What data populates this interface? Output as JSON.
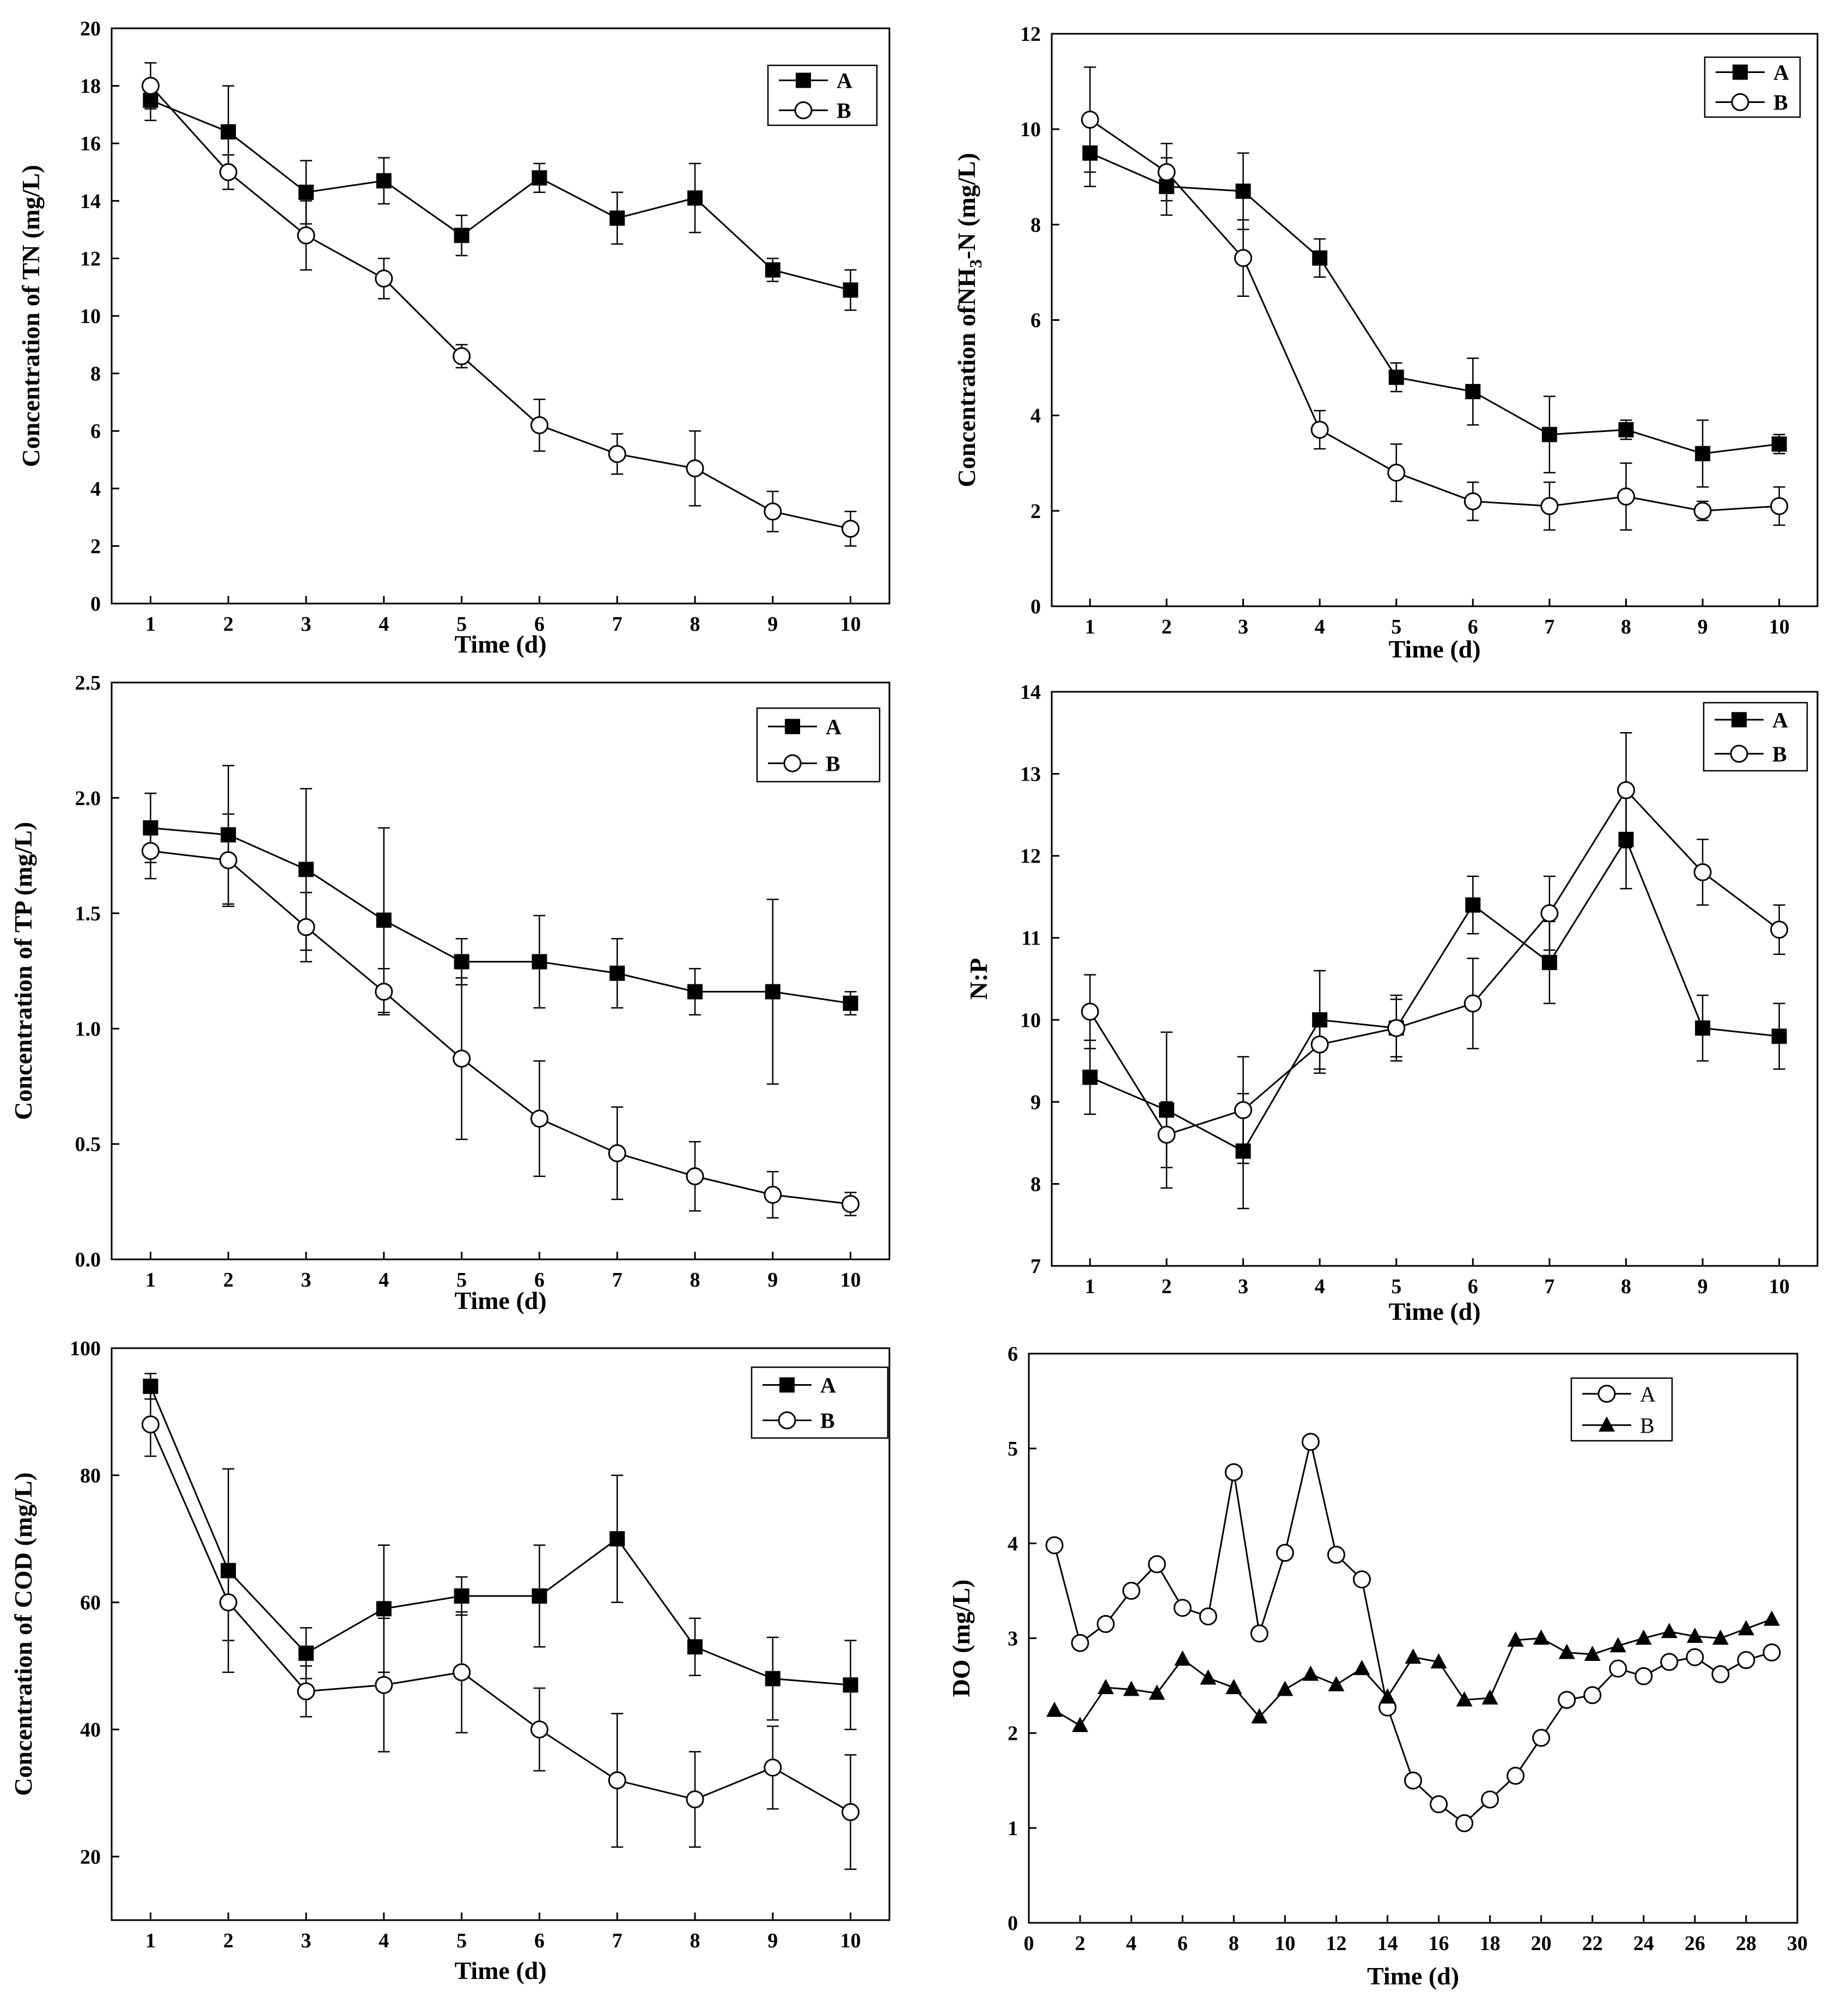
{
  "chart_data": [
    {
      "id": "tn",
      "type": "line",
      "title": "",
      "xlabel": "Time (d)",
      "ylabel": "Concentration of TN (mg/L)",
      "xlim": [
        0.5,
        10.5
      ],
      "ylim": [
        0,
        20
      ],
      "xticks": [
        1,
        2,
        3,
        4,
        5,
        6,
        7,
        8,
        9,
        10
      ],
      "yticks": [
        0,
        2,
        4,
        6,
        8,
        10,
        12,
        14,
        16,
        18,
        20
      ],
      "x": [
        1,
        2,
        3,
        4,
        5,
        6,
        7,
        8,
        9,
        10
      ],
      "grid": false,
      "legend_position": "top-right",
      "series": [
        {
          "name": "A",
          "marker": "filled-square",
          "values": [
            17.5,
            16.4,
            14.3,
            14.7,
            12.8,
            14.8,
            13.4,
            14.1,
            11.6,
            10.9
          ],
          "errors": [
            0.7,
            1.6,
            1.1,
            0.8,
            0.7,
            0.5,
            0.9,
            1.2,
            0.4,
            0.7
          ]
        },
        {
          "name": "B",
          "marker": "open-circle",
          "values": [
            18.0,
            15.0,
            12.8,
            11.3,
            8.6,
            6.2,
            5.2,
            4.7,
            3.2,
            2.6
          ],
          "errors": [
            0.8,
            0.6,
            1.2,
            0.7,
            0.4,
            0.9,
            0.7,
            1.3,
            0.7,
            0.6
          ]
        }
      ]
    },
    {
      "id": "nh3",
      "type": "line",
      "title": "",
      "xlabel": "Time (d)",
      "ylabel_main": "Concentration of",
      "ylabel_nh": "NH",
      "ylabel_sub": "3",
      "ylabel_tail": "-N (mg/L)",
      "xlim": [
        0.5,
        10.5
      ],
      "ylim": [
        0,
        12
      ],
      "xticks": [
        1,
        2,
        3,
        4,
        5,
        6,
        7,
        8,
        9,
        10
      ],
      "yticks": [
        0,
        2,
        4,
        6,
        8,
        10,
        12
      ],
      "x": [
        1,
        2,
        3,
        4,
        5,
        6,
        7,
        8,
        9,
        10
      ],
      "grid": false,
      "legend_position": "top-right",
      "series": [
        {
          "name": "A",
          "marker": "filled-square",
          "values": [
            9.5,
            8.8,
            8.7,
            7.3,
            4.8,
            4.5,
            3.6,
            3.7,
            3.2,
            3.4
          ],
          "errors": [
            0.7,
            0.6,
            0.8,
            0.4,
            0.3,
            0.7,
            0.8,
            0.2,
            0.7,
            0.2
          ]
        },
        {
          "name": "B",
          "marker": "open-circle",
          "values": [
            10.2,
            9.1,
            7.3,
            3.7,
            2.8,
            2.2,
            2.1,
            2.3,
            2.0,
            2.1
          ],
          "errors": [
            1.1,
            0.6,
            0.8,
            0.4,
            0.6,
            0.4,
            0.5,
            0.7,
            0.2,
            0.4
          ]
        }
      ]
    },
    {
      "id": "tp",
      "type": "line",
      "title": "",
      "xlabel": "Time (d)",
      "ylabel": "Concentration of TP (mg/L)",
      "xlim": [
        0.5,
        10.5
      ],
      "ylim": [
        0,
        2.5
      ],
      "xticks": [
        1,
        2,
        3,
        4,
        5,
        6,
        7,
        8,
        9,
        10
      ],
      "yticks": [
        "0.0",
        "0.5",
        "1.0",
        "1.5",
        "2.0",
        "2.5"
      ],
      "x": [
        1,
        2,
        3,
        4,
        5,
        6,
        7,
        8,
        9,
        10
      ],
      "grid": false,
      "legend_position": "top-right",
      "series": [
        {
          "name": "A",
          "marker": "filled-square",
          "values": [
            1.87,
            1.84,
            1.69,
            1.47,
            1.29,
            1.29,
            1.24,
            1.16,
            1.16,
            1.11
          ],
          "errors": [
            0.15,
            0.3,
            0.35,
            0.4,
            0.1,
            0.2,
            0.15,
            0.1,
            0.4,
            0.05
          ]
        },
        {
          "name": "B",
          "marker": "open-circle",
          "values": [
            1.77,
            1.73,
            1.44,
            1.16,
            0.87,
            0.61,
            0.46,
            0.36,
            0.28,
            0.24
          ],
          "errors": [
            0.12,
            0.2,
            0.15,
            0.1,
            0.35,
            0.25,
            0.2,
            0.15,
            0.1,
            0.05
          ]
        }
      ]
    },
    {
      "id": "np",
      "type": "line",
      "title": "",
      "xlabel": "Time (d)",
      "ylabel": "N:P",
      "xlim": [
        0.5,
        10.5
      ],
      "ylim": [
        7,
        14
      ],
      "xticks": [
        1,
        2,
        3,
        4,
        5,
        6,
        7,
        8,
        9,
        10
      ],
      "yticks": [
        7,
        8,
        9,
        10,
        11,
        12,
        13,
        14
      ],
      "x": [
        1,
        2,
        3,
        4,
        5,
        6,
        7,
        8,
        9,
        10
      ],
      "grid": false,
      "legend_position": "top-right",
      "series": [
        {
          "name": "A",
          "marker": "filled-square",
          "values": [
            9.3,
            8.9,
            8.4,
            10.0,
            9.9,
            11.4,
            10.7,
            12.2,
            9.9,
            9.8
          ],
          "errors": [
            0.45,
            0.95,
            0.7,
            0.6,
            0.4,
            0.35,
            0.5,
            0.6,
            0.4,
            0.4
          ]
        },
        {
          "name": "B",
          "marker": "open-circle",
          "values": [
            10.1,
            8.6,
            8.9,
            9.7,
            9.9,
            10.2,
            11.3,
            12.8,
            11.8,
            11.1
          ],
          "errors": [
            0.45,
            0.4,
            0.65,
            0.35,
            0.35,
            0.55,
            0.45,
            0.7,
            0.4,
            0.3
          ]
        }
      ]
    },
    {
      "id": "cod",
      "type": "line",
      "title": "",
      "xlabel": "Time (d)",
      "ylabel": "Concentration of COD (mg/L)",
      "xlim": [
        0.5,
        10.5
      ],
      "ylim": [
        10,
        100
      ],
      "xticks": [
        1,
        2,
        3,
        4,
        5,
        6,
        7,
        8,
        9,
        10
      ],
      "yticks": [
        20,
        40,
        60,
        80,
        100
      ],
      "x": [
        1,
        2,
        3,
        4,
        5,
        6,
        7,
        8,
        9,
        10
      ],
      "grid": false,
      "legend_position": "top-right",
      "series": [
        {
          "name": "A",
          "marker": "filled-square",
          "values": [
            94,
            65,
            52,
            59,
            61,
            61,
            70,
            53,
            48,
            47
          ],
          "errors": [
            2,
            16,
            4,
            10,
            3,
            8,
            10,
            4.5,
            6.5,
            7
          ]
        },
        {
          "name": "B",
          "marker": "open-circle",
          "values": [
            88,
            60,
            46,
            47,
            49,
            40,
            32,
            29,
            34,
            27
          ],
          "errors": [
            5,
            6,
            4,
            10.5,
            9.5,
            6.5,
            10.5,
            7.5,
            6.5,
            9
          ]
        }
      ]
    },
    {
      "id": "do",
      "type": "line",
      "title": "",
      "xlabel": "Time (d)",
      "ylabel": "DO (mg/L)",
      "xlim": [
        0,
        30
      ],
      "ylim": [
        0,
        6
      ],
      "xticks": [
        0,
        2,
        4,
        6,
        8,
        10,
        12,
        14,
        16,
        18,
        20,
        22,
        24,
        26,
        28,
        30
      ],
      "yticks": [
        0,
        1,
        2,
        3,
        4,
        5,
        6
      ],
      "x": [
        1,
        2,
        3,
        4,
        5,
        6,
        7,
        8,
        9,
        10,
        11,
        12,
        13,
        14,
        15,
        16,
        17,
        18,
        19,
        20,
        21,
        22,
        23,
        24,
        25,
        26,
        27,
        28,
        29
      ],
      "grid": false,
      "legend_position": "top-center",
      "series": [
        {
          "name": "A",
          "marker": "open-circle",
          "values": [
            3.98,
            2.95,
            3.15,
            3.5,
            3.78,
            3.32,
            3.23,
            4.75,
            3.05,
            3.9,
            5.07,
            3.88,
            3.62,
            2.27,
            1.5,
            1.25,
            1.05,
            1.3,
            1.55,
            1.95,
            2.35,
            2.4,
            2.68,
            2.6,
            2.75,
            2.8,
            2.62,
            2.77,
            2.85
          ]
        },
        {
          "name": "B",
          "marker": "filled-triangle",
          "values": [
            2.24,
            2.08,
            2.48,
            2.46,
            2.42,
            2.78,
            2.58,
            2.48,
            2.17,
            2.46,
            2.62,
            2.51,
            2.68,
            2.38,
            2.8,
            2.75,
            2.35,
            2.37,
            2.98,
            3.0,
            2.85,
            2.83,
            2.92,
            3.0,
            3.07,
            3.02,
            3.0,
            3.1,
            3.2
          ]
        }
      ]
    }
  ]
}
